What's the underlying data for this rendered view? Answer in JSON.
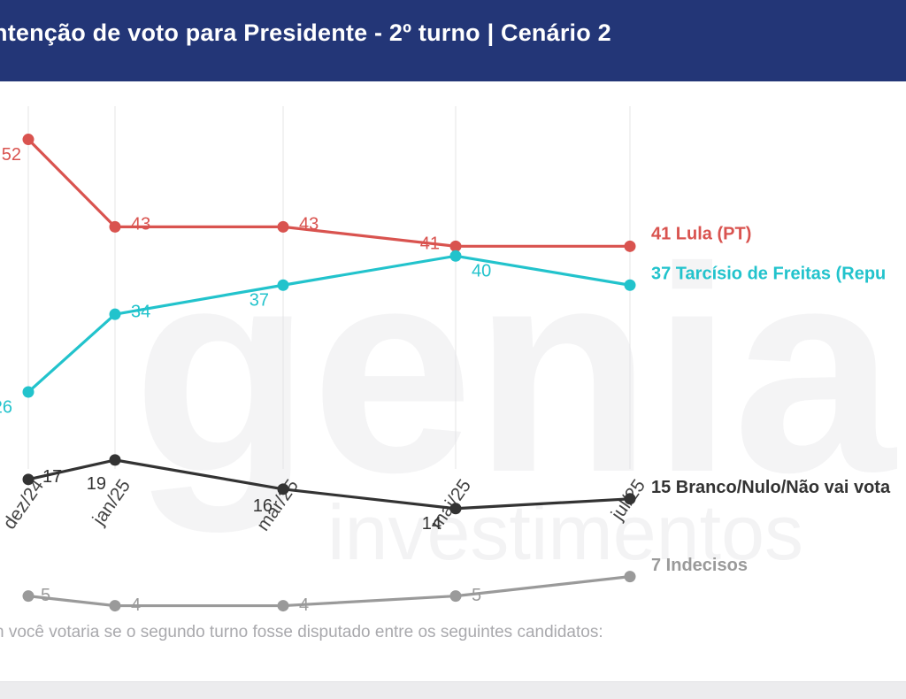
{
  "header": {
    "title": "ntenção de voto para Presidente - 2º turno | Cenário 2"
  },
  "question": "n você votaria se o segundo turno fosse disputado entre os seguintes candidatos:",
  "colors": {
    "header_bg": "#233677",
    "lula": "#d9534f",
    "tarcisio": "#22c3cc",
    "branco": "#333333",
    "indecisos": "#9a9a9a"
  },
  "chart_data": {
    "type": "line",
    "title": "ntenção de voto para Presidente - 2º turno | Cenário 2",
    "xlabel": "",
    "ylabel": "",
    "ylim": [
      0,
      55
    ],
    "grid": "vertical",
    "categories": [
      "dez/24",
      "jan/25",
      "mar/25",
      "mai/25",
      "jul/25"
    ],
    "series": [
      {
        "name": "Lula (PT)",
        "end_label": "41 Lula (PT)",
        "color": "#d9534f",
        "values": [
          52,
          43,
          43,
          41,
          41
        ]
      },
      {
        "name": "Tarcísio de Freitas (Repu",
        "end_label": "37 Tarcísio de Freitas (Repu",
        "color": "#22c3cc",
        "values": [
          26,
          34,
          37,
          40,
          37
        ]
      },
      {
        "name": "Branco/Nulo/Não vai vota",
        "end_label": "15 Branco/Nulo/Não vai vota",
        "color": "#333333",
        "values": [
          17,
          19,
          16,
          14,
          15
        ]
      },
      {
        "name": "Indecisos",
        "end_label": "7 Indecisos",
        "color": "#9a9a9a",
        "values": [
          5,
          4,
          4,
          5,
          7
        ]
      }
    ],
    "point_labels": [
      [
        "52",
        "43",
        "43",
        "41"
      ],
      [
        "26",
        "34",
        "37",
        "40"
      ],
      [
        "17",
        "19",
        "16",
        "14"
      ],
      [
        "5",
        "4",
        "4",
        "5"
      ]
    ],
    "watermark": [
      "genial",
      "investimentos"
    ]
  }
}
